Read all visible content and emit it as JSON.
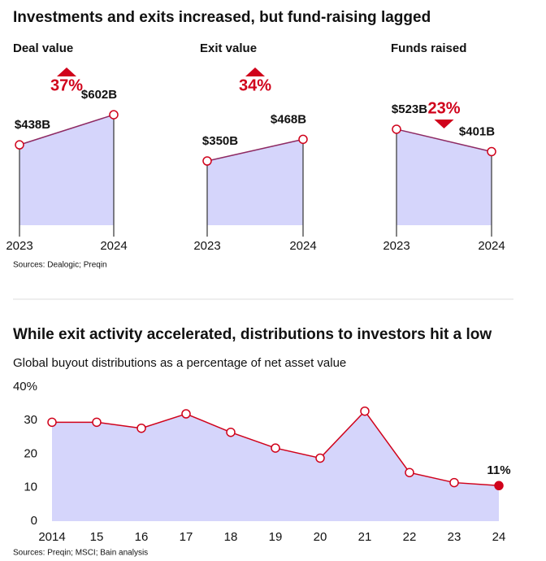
{
  "headline": "Investments and exits increased, but fund-raising lagged",
  "sources": "Sources: Dealogic; Preqin",
  "chart_data": [
    {
      "type": "area",
      "title": "Deal value",
      "categories": [
        "2023",
        "2024"
      ],
      "values": [
        438,
        602
      ],
      "value_labels": [
        "$438B",
        "$602B"
      ],
      "change": 37,
      "change_label": "37%",
      "direction": "up",
      "ylim": [
        0,
        700
      ],
      "color": "#8e2a63",
      "fill": "#d5d5fb",
      "marker_color": "#d0021b"
    },
    {
      "type": "area",
      "title": "Exit value",
      "categories": [
        "2023",
        "2024"
      ],
      "values": [
        350,
        468
      ],
      "value_labels": [
        "$350B",
        "$468B"
      ],
      "change": 34,
      "change_label": "34%",
      "direction": "up",
      "ylim": [
        0,
        700
      ],
      "color": "#8e2a63",
      "fill": "#d5d5fb",
      "marker_color": "#d0021b"
    },
    {
      "type": "area",
      "title": "Funds raised",
      "categories": [
        "2023",
        "2024"
      ],
      "values": [
        523,
        401
      ],
      "value_labels": [
        "$523B",
        "$401B"
      ],
      "change": 23,
      "change_label": "23%",
      "direction": "down",
      "ylim": [
        0,
        700
      ],
      "color": "#8e2a63",
      "fill": "#d5d5fb",
      "marker_color": "#d0021b"
    },
    {
      "type": "line",
      "title": "While exit activity accelerated, distributions to investors hit a low",
      "subtitle": "Global buyout distributions as a percentage of net asset value",
      "source": "Sources: Preqin; MSCI; Bain analysis",
      "categories": [
        "2014",
        "15",
        "16",
        "17",
        "18",
        "19",
        "20",
        "21",
        "22",
        "23",
        "24"
      ],
      "values": [
        29.5,
        29.5,
        27.7,
        32,
        26.5,
        21.8,
        18.8,
        32.8,
        14.5,
        11.5,
        10.6
      ],
      "value_labels": [
        null,
        null,
        null,
        null,
        null,
        null,
        null,
        null,
        null,
        null,
        "11%"
      ],
      "ylim": [
        0,
        40
      ],
      "yticks": [
        0,
        10,
        20,
        30,
        {
          "value": 40,
          "label": "40%"
        }
      ],
      "color": "#d0021b",
      "fill": "#d5d5fb",
      "marker_color": "#d0021b"
    }
  ]
}
